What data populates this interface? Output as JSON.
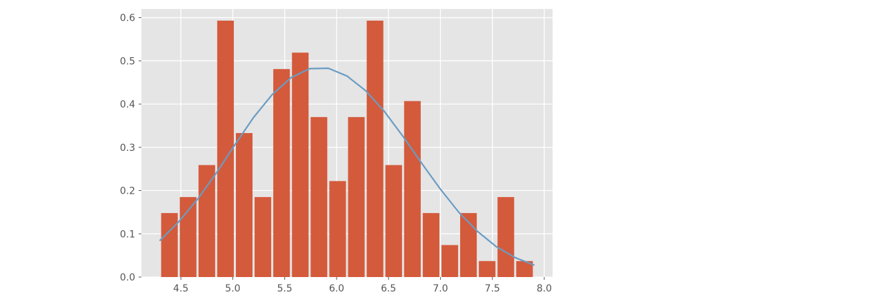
{
  "chart_data": {
    "type": "bar",
    "title": "",
    "xlabel": "",
    "ylabel": "",
    "xlim": [
      4.12,
      8.08
    ],
    "ylim": [
      0,
      0.62
    ],
    "grid": true,
    "x_ticks": [
      4.5,
      5.0,
      5.5,
      6.0,
      6.5,
      7.0,
      7.5,
      8.0
    ],
    "x_tick_labels": [
      "4.5",
      "5.0",
      "5.5",
      "6.0",
      "6.5",
      "7.0",
      "7.5",
      "8.0"
    ],
    "y_ticks": [
      0.0,
      0.1,
      0.2,
      0.3,
      0.4,
      0.5,
      0.6
    ],
    "y_tick_labels": [
      "0.0",
      "0.1",
      "0.2",
      "0.3",
      "0.4",
      "0.5",
      "0.6"
    ],
    "bins": [
      {
        "x0": 4.3,
        "x1": 4.48,
        "value": 0.148
      },
      {
        "x0": 4.48,
        "x1": 4.66,
        "value": 0.185
      },
      {
        "x0": 4.66,
        "x1": 4.84,
        "value": 0.259
      },
      {
        "x0": 4.84,
        "x1": 5.02,
        "value": 0.593
      },
      {
        "x0": 5.02,
        "x1": 5.2,
        "value": 0.333
      },
      {
        "x0": 5.2,
        "x1": 5.38,
        "value": 0.185
      },
      {
        "x0": 5.38,
        "x1": 5.56,
        "value": 0.481
      },
      {
        "x0": 5.56,
        "x1": 5.74,
        "value": 0.519
      },
      {
        "x0": 5.74,
        "x1": 5.92,
        "value": 0.37
      },
      {
        "x0": 5.92,
        "x1": 6.1,
        "value": 0.222
      },
      {
        "x0": 6.1,
        "x1": 6.28,
        "value": 0.37
      },
      {
        "x0": 6.28,
        "x1": 6.46,
        "value": 0.593
      },
      {
        "x0": 6.46,
        "x1": 6.64,
        "value": 0.259
      },
      {
        "x0": 6.64,
        "x1": 6.82,
        "value": 0.407
      },
      {
        "x0": 6.82,
        "x1": 7.0,
        "value": 0.148
      },
      {
        "x0": 7.0,
        "x1": 7.18,
        "value": 0.074
      },
      {
        "x0": 7.18,
        "x1": 7.36,
        "value": 0.148
      },
      {
        "x0": 7.36,
        "x1": 7.54,
        "value": 0.037
      },
      {
        "x0": 7.54,
        "x1": 7.72,
        "value": 0.185
      },
      {
        "x0": 7.72,
        "x1": 7.9,
        "value": 0.037
      }
    ],
    "series": [
      {
        "type": "line",
        "x": [
          4.3,
          4.48,
          4.66,
          4.84,
          5.02,
          5.2,
          5.38,
          5.56,
          5.74,
          5.92,
          6.1,
          6.28,
          6.46,
          6.64,
          6.82,
          7.0,
          7.18,
          7.36,
          7.54,
          7.72,
          7.9
        ],
        "y": [
          0.085,
          0.128,
          0.18,
          0.24,
          0.306,
          0.369,
          0.422,
          0.461,
          0.482,
          0.483,
          0.465,
          0.431,
          0.383,
          0.325,
          0.263,
          0.203,
          0.149,
          0.105,
          0.07,
          0.045,
          0.028
        ]
      }
    ],
    "colors": {
      "bar": "#d45a3c",
      "line": "#6a9cc3",
      "background": "#e5e5e5",
      "grid": "#ffffff",
      "tick_label": "#555555"
    }
  }
}
